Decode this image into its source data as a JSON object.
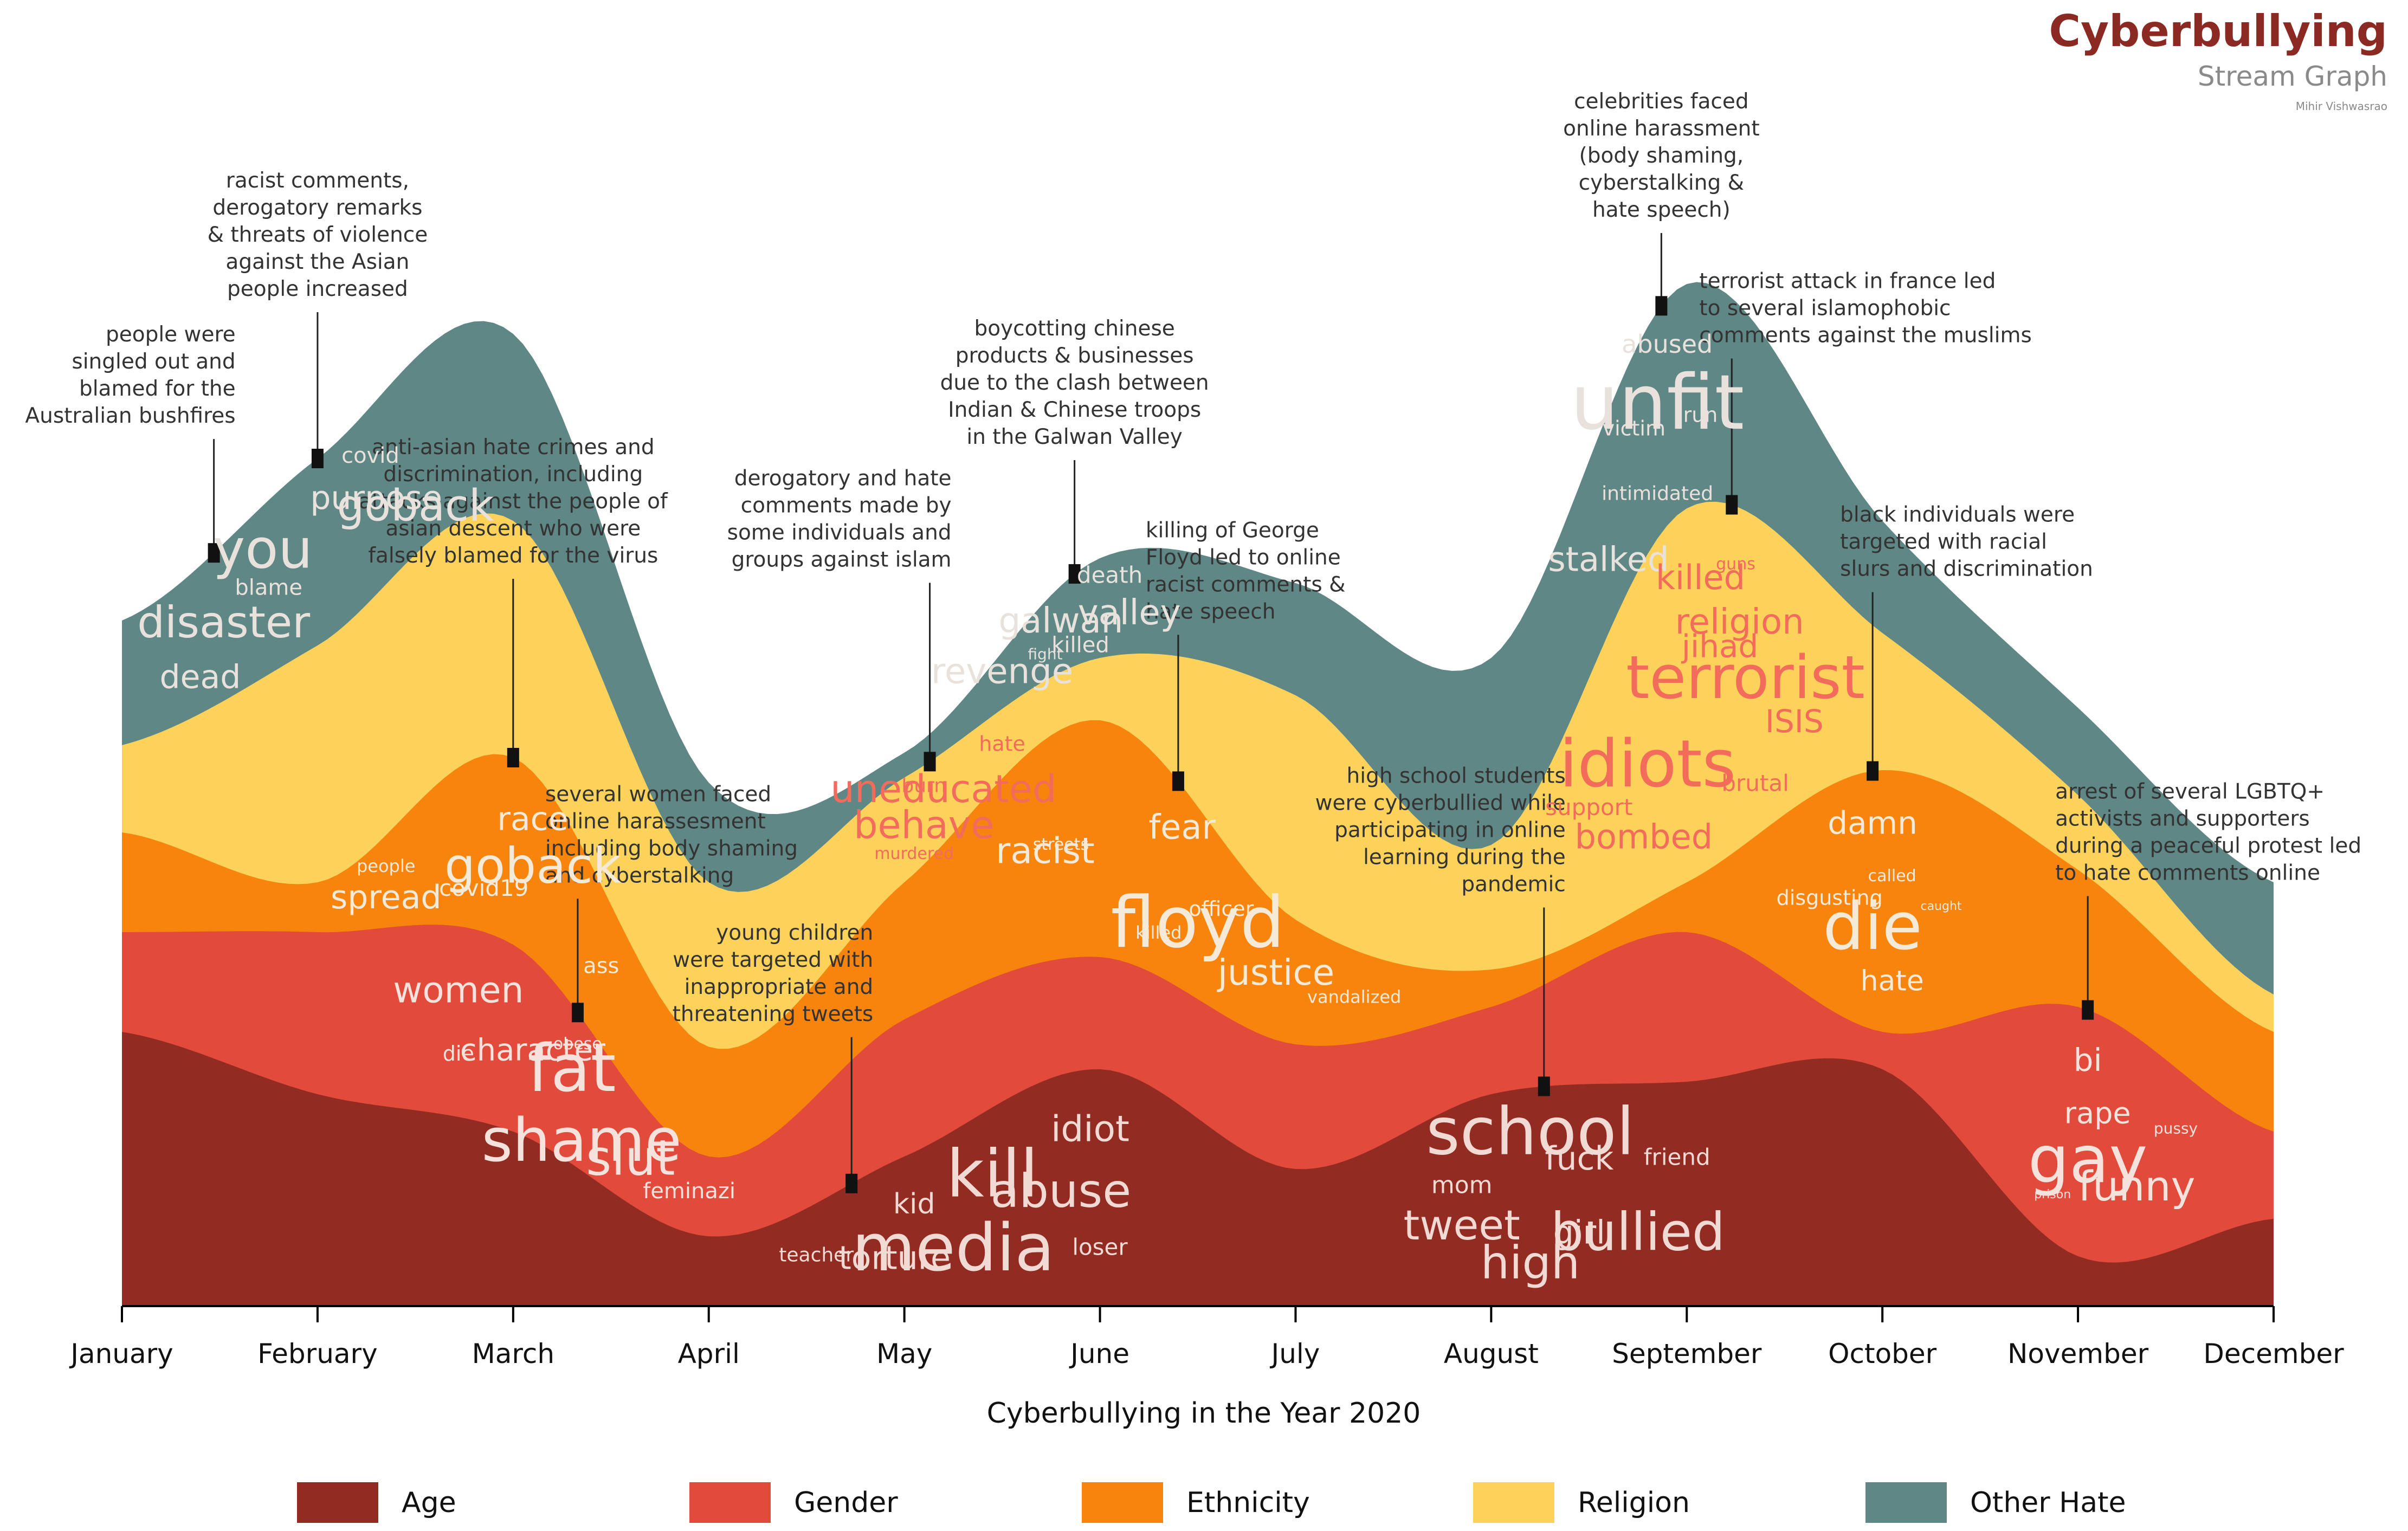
{
  "title": "Cyberbullying",
  "subtitle": "Stream Graph",
  "author": "Mihir Vishwasrao",
  "chart_data": {
    "type": "area",
    "subtype": "streamgraph",
    "xlabel": "Cyberbullying in the Year 2020",
    "months": [
      "January",
      "February",
      "March",
      "April",
      "May",
      "June",
      "July",
      "August",
      "September",
      "October",
      "November",
      "December"
    ],
    "series": [
      {
        "name": "Age",
        "color": "#922b21",
        "values": [
          1.1,
          0.85,
          0.7,
          0.28,
          0.6,
          0.95,
          0.55,
          0.85,
          0.9,
          0.95,
          0.2,
          0.35
        ]
      },
      {
        "name": "Gender",
        "color": "#e24a3b",
        "values": [
          0.4,
          0.65,
          0.75,
          0.32,
          0.55,
          0.45,
          0.5,
          0.35,
          0.6,
          0.15,
          1.0,
          0.35
        ]
      },
      {
        "name": "Ethnicity",
        "color": "#f6840d",
        "values": [
          0.4,
          0.2,
          0.75,
          0.44,
          0.55,
          0.95,
          0.5,
          0.15,
          0.2,
          1.05,
          0.55,
          0.4
        ]
      },
      {
        "name": "Religion",
        "color": "#fcd25b",
        "values": [
          0.35,
          0.95,
          0.95,
          0.66,
          0.42,
          0.25,
          0.9,
          0.5,
          1.5,
          0.55,
          0.3,
          0.15
        ]
      },
      {
        "name": "Other Hate",
        "color": "#5f8785",
        "values": [
          0.5,
          0.75,
          0.75,
          0.4,
          0.1,
          0.4,
          0.45,
          0.75,
          0.9,
          0.45,
          0.35,
          0.45
        ]
      }
    ],
    "words": [
      {
        "text": "you",
        "month": 0.72,
        "layer": "Other Hate",
        "size": 100,
        "color": "#e9e2dc"
      },
      {
        "text": "blame",
        "month": 0.75,
        "layer": "Other Hate",
        "size": 40,
        "color": "#e9e2dc"
      },
      {
        "text": "disaster",
        "month": 0.52,
        "layer": "Other Hate",
        "size": 80,
        "color": "#e9e2dc"
      },
      {
        "text": "dead",
        "month": 0.4,
        "layer": "Other Hate",
        "size": 60,
        "color": "#e9e2dc"
      },
      {
        "text": "covid",
        "month": 1.27,
        "layer": "Other Hate",
        "size": 40,
        "color": "#e9e2dc"
      },
      {
        "text": "purpose",
        "month": 1.3,
        "layer": "Other Hate",
        "size": 60,
        "color": "#e9e2dc"
      },
      {
        "text": "goback",
        "month": 1.5,
        "layer": "Other Hate",
        "size": 80,
        "color": "#e9e2dc"
      },
      {
        "text": "race",
        "month": 2.1,
        "layer": "Ethnicity",
        "size": 60,
        "color": "#f5e9d8"
      },
      {
        "text": "goback",
        "month": 2.1,
        "layer": "Ethnicity",
        "size": 90,
        "color": "#f5e9d8"
      },
      {
        "text": "people",
        "month": 1.35,
        "layer": "Ethnicity",
        "size": 32,
        "color": "#f5e9d8"
      },
      {
        "text": "covid19",
        "month": 1.85,
        "layer": "Ethnicity",
        "size": 42,
        "color": "#f5e9d8"
      },
      {
        "text": "ass",
        "month": 2.45,
        "layer": "Ethnicity",
        "size": 40,
        "color": "#f5e9d8"
      },
      {
        "text": "spread",
        "month": 1.35,
        "layer": "Ethnicity",
        "size": 60,
        "color": "#f5e9d8"
      },
      {
        "text": "obese",
        "month": 2.33,
        "layer": "Gender",
        "size": 30,
        "color": "#f5e2dc"
      },
      {
        "text": "women",
        "month": 1.72,
        "layer": "Gender",
        "size": 66,
        "color": "#f5e2dc"
      },
      {
        "text": "fat",
        "month": 2.3,
        "layer": "Gender",
        "size": 120,
        "color": "#f5e2dc"
      },
      {
        "text": "character",
        "month": 2.1,
        "layer": "Gender",
        "size": 56,
        "color": "#f5e2dc"
      },
      {
        "text": "slut",
        "month": 2.6,
        "layer": "Gender",
        "size": 90,
        "color": "#f5e2dc"
      },
      {
        "text": "die",
        "month": 1.72,
        "layer": "Gender",
        "size": 38,
        "color": "#f5e2dc"
      },
      {
        "text": "feminazi",
        "month": 2.9,
        "layer": "Gender",
        "size": 40,
        "color": "#f5e2dc"
      },
      {
        "text": "shame",
        "month": 2.35,
        "layer": "Gender",
        "size": 110,
        "color": "#f5e2dc"
      },
      {
        "text": "burn",
        "month": 4.1,
        "layer": "Religion",
        "size": 36,
        "color": "#f26b5b"
      },
      {
        "text": "uneducated",
        "month": 4.2,
        "layer": "Religion",
        "size": 70,
        "color": "#f26b5b"
      },
      {
        "text": "hate",
        "month": 4.5,
        "layer": "Religion",
        "size": 38,
        "color": "#f26b5b"
      },
      {
        "text": "behave",
        "month": 4.1,
        "layer": "Religion",
        "size": 70,
        "color": "#f26b5b"
      },
      {
        "text": "murdered",
        "month": 4.05,
        "layer": "Religion",
        "size": 30,
        "color": "#f26b5b"
      },
      {
        "text": "death",
        "month": 5.05,
        "layer": "Other Hate",
        "size": 42,
        "color": "#e9e2dc"
      },
      {
        "text": "galwan",
        "month": 4.8,
        "layer": "Other Hate",
        "size": 64,
        "color": "#e9e2dc"
      },
      {
        "text": "revenge",
        "month": 4.5,
        "layer": "Other Hate",
        "size": 64,
        "color": "#e9e2dc"
      },
      {
        "text": "valley",
        "month": 5.15,
        "layer": "Other Hate",
        "size": 64,
        "color": "#e9e2dc"
      },
      {
        "text": "killed",
        "month": 4.9,
        "layer": "Other Hate",
        "size": 40,
        "color": "#e9e2dc"
      },
      {
        "text": "fight",
        "month": 4.72,
        "layer": "Other Hate",
        "size": 28,
        "color": "#e9e2dc"
      },
      {
        "text": "fear",
        "month": 5.42,
        "layer": "Ethnicity",
        "size": 62,
        "color": "#f5e9d8"
      },
      {
        "text": "officer",
        "month": 5.62,
        "layer": "Ethnicity",
        "size": 38,
        "color": "#f5e9d8"
      },
      {
        "text": "streets",
        "month": 4.8,
        "layer": "Ethnicity",
        "size": 30,
        "color": "#f5e9d8"
      },
      {
        "text": "floyd",
        "month": 5.5,
        "layer": "Ethnicity",
        "size": 130,
        "color": "#f5e9d8"
      },
      {
        "text": "racist",
        "month": 4.72,
        "layer": "Ethnicity",
        "size": 66,
        "color": "#f5e9d8"
      },
      {
        "text": "killed",
        "month": 5.3,
        "layer": "Ethnicity",
        "size": 32,
        "color": "#f5e9d8"
      },
      {
        "text": "justice",
        "month": 5.9,
        "layer": "Ethnicity",
        "size": 66,
        "color": "#f5e9d8"
      },
      {
        "text": "vandalized",
        "month": 6.3,
        "layer": "Ethnicity",
        "size": 32,
        "color": "#f5e9d8"
      },
      {
        "text": "kid",
        "month": 4.05,
        "layer": "Age",
        "size": 52,
        "color": "#f1d9d4"
      },
      {
        "text": "kill",
        "month": 4.45,
        "layer": "Age",
        "size": 120,
        "color": "#f1d9d4"
      },
      {
        "text": "idiot",
        "month": 4.95,
        "layer": "Age",
        "size": 66,
        "color": "#f1d9d4"
      },
      {
        "text": "torture",
        "month": 3.95,
        "layer": "Age",
        "size": 60,
        "color": "#f1d9d4"
      },
      {
        "text": "abuse",
        "month": 4.8,
        "layer": "Age",
        "size": 86,
        "color": "#f1d9d4"
      },
      {
        "text": "teacher",
        "month": 3.55,
        "layer": "Age",
        "size": 36,
        "color": "#f1d9d4"
      },
      {
        "text": "media",
        "month": 4.25,
        "layer": "Age",
        "size": 120,
        "color": "#f1d9d4"
      },
      {
        "text": "loser",
        "month": 5.0,
        "layer": "Age",
        "size": 42,
        "color": "#f1d9d4"
      },
      {
        "text": "abused",
        "month": 7.9,
        "layer": "Other Hate",
        "size": 46,
        "color": "#e9e2dc"
      },
      {
        "text": "victim",
        "month": 7.73,
        "layer": "Other Hate",
        "size": 38,
        "color": "#e9e2dc"
      },
      {
        "text": "unfit",
        "month": 7.85,
        "layer": "Other Hate",
        "size": 140,
        "color": "#e9e2dc"
      },
      {
        "text": "stalked",
        "month": 7.6,
        "layer": "Other Hate",
        "size": 62,
        "color": "#e9e2dc"
      },
      {
        "text": "run",
        "month": 8.07,
        "layer": "Other Hate",
        "size": 38,
        "color": "#e9e2dc"
      },
      {
        "text": "intimidated",
        "month": 7.85,
        "layer": "Other Hate",
        "size": 36,
        "color": "#e9e2dc"
      },
      {
        "text": "guns",
        "month": 8.25,
        "layer": "Religion",
        "size": 30,
        "color": "#f26b5b"
      },
      {
        "text": "religion",
        "month": 8.27,
        "layer": "Religion",
        "size": 64,
        "color": "#f26b5b"
      },
      {
        "text": "killed",
        "month": 8.07,
        "layer": "Religion",
        "size": 62,
        "color": "#f26b5b"
      },
      {
        "text": "terrorist",
        "month": 8.3,
        "layer": "Religion",
        "size": 110,
        "color": "#f26b5b"
      },
      {
        "text": "support",
        "month": 7.5,
        "layer": "Religion",
        "size": 42,
        "color": "#f26b5b"
      },
      {
        "text": "jihad",
        "month": 8.17,
        "layer": "Religion",
        "size": 58,
        "color": "#f26b5b"
      },
      {
        "text": "idiots",
        "month": 7.8,
        "layer": "Religion",
        "size": 120,
        "color": "#f26b5b"
      },
      {
        "text": "ISIS",
        "month": 8.55,
        "layer": "Religion",
        "size": 58,
        "color": "#f26b5b"
      },
      {
        "text": "brutal",
        "month": 8.35,
        "layer": "Religion",
        "size": 42,
        "color": "#f26b5b"
      },
      {
        "text": "bombed",
        "month": 7.78,
        "layer": "Religion",
        "size": 62,
        "color": "#f26b5b"
      },
      {
        "text": "damn",
        "month": 8.95,
        "layer": "Ethnicity",
        "size": 58,
        "color": "#f5e9d8"
      },
      {
        "text": "called",
        "month": 9.05,
        "layer": "Ethnicity",
        "size": 30,
        "color": "#f5e9d8"
      },
      {
        "text": "die",
        "month": 8.95,
        "layer": "Ethnicity",
        "size": 120,
        "color": "#f5e9d8"
      },
      {
        "text": "caught",
        "month": 9.3,
        "layer": "Ethnicity",
        "size": 22,
        "color": "#f5e9d8"
      },
      {
        "text": "disgusting",
        "month": 8.73,
        "layer": "Ethnicity",
        "size": 38,
        "color": "#f5e9d8"
      },
      {
        "text": "hate",
        "month": 9.05,
        "layer": "Ethnicity",
        "size": 52,
        "color": "#f5e9d8"
      },
      {
        "text": "fuck",
        "month": 7.45,
        "layer": "Age",
        "size": 60,
        "color": "#f1d9d4"
      },
      {
        "text": "school",
        "month": 7.2,
        "layer": "Age",
        "size": 120,
        "color": "#f1d9d4"
      },
      {
        "text": "friend",
        "month": 7.95,
        "layer": "Age",
        "size": 42,
        "color": "#f1d9d4"
      },
      {
        "text": "mom",
        "month": 6.85,
        "layer": "Age",
        "size": 44,
        "color": "#f1d9d4"
      },
      {
        "text": "bullied",
        "month": 7.75,
        "layer": "Age",
        "size": 96,
        "color": "#f1d9d4"
      },
      {
        "text": "tweet",
        "month": 6.85,
        "layer": "Age",
        "size": 76,
        "color": "#f1d9d4"
      },
      {
        "text": "high",
        "month": 7.2,
        "layer": "Age",
        "size": 84,
        "color": "#f1d9d4"
      },
      {
        "text": "girl",
        "month": 7.45,
        "layer": "Age",
        "size": 60,
        "color": "#f1d9d4"
      },
      {
        "text": "bi",
        "month": 10.05,
        "layer": "Gender",
        "size": 58,
        "color": "#f5e2dc"
      },
      {
        "text": "rape",
        "month": 10.1,
        "layer": "Gender",
        "size": 54,
        "color": "#f5e2dc"
      },
      {
        "text": "gay",
        "month": 10.05,
        "layer": "Gender",
        "size": 120,
        "color": "#f5e2dc"
      },
      {
        "text": "pussy",
        "month": 10.5,
        "layer": "Gender",
        "size": 28,
        "color": "#f5e2dc"
      },
      {
        "text": "prison",
        "month": 9.87,
        "layer": "Gender",
        "size": 22,
        "color": "#f5e2dc"
      },
      {
        "text": "funny",
        "month": 10.3,
        "layer": "Gender",
        "size": 76,
        "color": "#f5e2dc"
      }
    ],
    "annotations": [
      {
        "month": 0.47,
        "layer": "Other Hate",
        "text": [
          "people were",
          "singled out and",
          "blamed for the",
          "Australian bushfires"
        ],
        "align": "end"
      },
      {
        "month": 1.0,
        "layer": "Other Hate",
        "text": [
          "racist comments,",
          "derogatory remarks",
          "& threats of violence",
          "against the Asian",
          "people increased"
        ],
        "align": "middle"
      },
      {
        "month": 2.0,
        "layer": "Ethnicity",
        "text": [
          "anti-asian hate crimes and",
          "discrimination, including",
          "attacks against the people of",
          "asian descent who were",
          "falsely blamed for the virus"
        ],
        "align": "middle"
      },
      {
        "month": 2.33,
        "layer": "Gender",
        "text": [
          "several women faced",
          "online harassesment",
          "including body shaming",
          "and cyberstalking"
        ],
        "align": "start"
      },
      {
        "month": 3.73,
        "layer": "Age",
        "text": [
          "young children",
          "were targeted with",
          "inappropriate and",
          "threatening tweets"
        ],
        "align": "end"
      },
      {
        "month": 4.13,
        "layer": "Religion",
        "text": [
          "derogatory and hate",
          "comments made by",
          "some individuals and",
          "groups against islam"
        ],
        "align": "end"
      },
      {
        "month": 4.87,
        "layer": "Other Hate",
        "text": [
          "boycotting chinese",
          "products & businesses",
          "due to the clash between",
          "Indian & Chinese troops",
          "in the Galwan Valley"
        ],
        "align": "middle"
      },
      {
        "month": 5.4,
        "layer": "Ethnicity",
        "text": [
          "killing of George",
          "Floyd led to online",
          "racist comments &",
          "hate speech"
        ],
        "align": "start"
      },
      {
        "month": 7.27,
        "layer": "Age",
        "text": [
          "high school students",
          "were cyberbullied while",
          "participating in online",
          "learning during the",
          "pandemic"
        ],
        "align": "end"
      },
      {
        "month": 7.87,
        "layer": "Other Hate",
        "text": [
          "celebrities faced",
          "online harassment",
          "(body shaming,",
          "cyberstalking &",
          "hate speech)"
        ],
        "align": "middle"
      },
      {
        "month": 8.23,
        "layer": "Religion",
        "text": [
          "terrorist attack in france led",
          "to several islamophobic",
          "comments against the muslims"
        ],
        "align": "start"
      },
      {
        "month": 8.95,
        "layer": "Ethnicity",
        "text": [
          "black individuals were",
          "targeted with racial",
          "slurs and discrimination"
        ],
        "align": "start"
      },
      {
        "month": 10.05,
        "layer": "Gender",
        "text": [
          "arrest of several LGBTQ+",
          "activists and supporters",
          "during a peaceful protest led",
          "to hate comments online"
        ],
        "align": "start"
      }
    ]
  }
}
